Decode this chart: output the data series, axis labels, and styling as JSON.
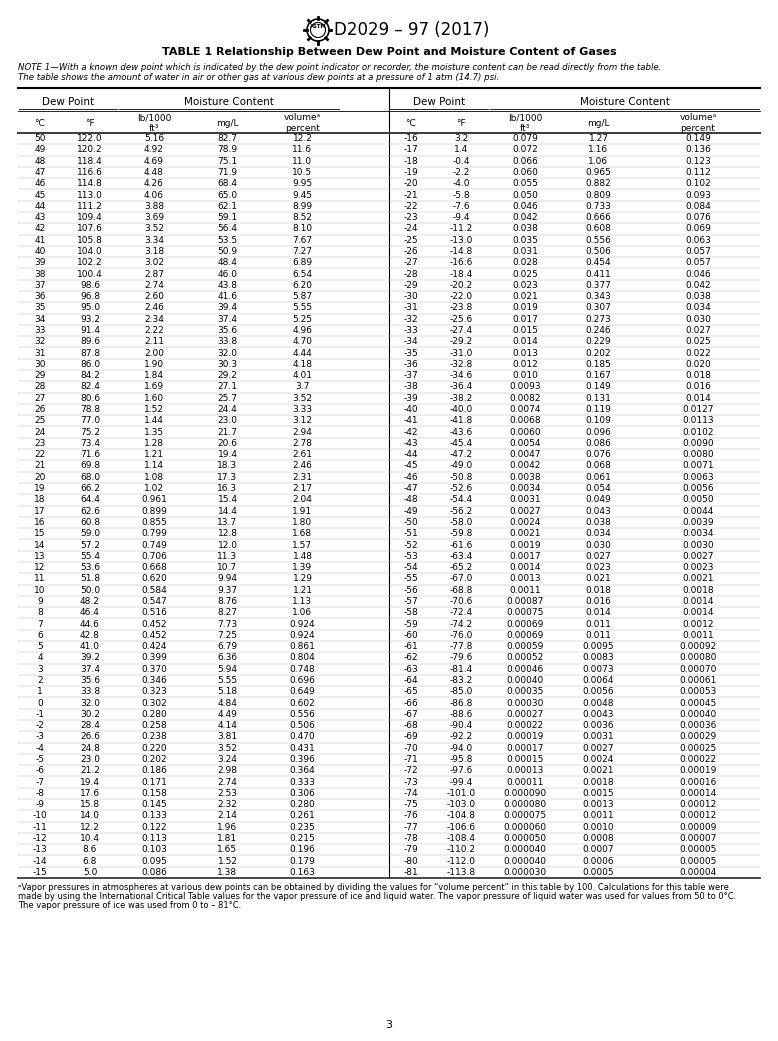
{
  "title": "D2029 – 97 (2017)",
  "table_title": "TABLE 1 Relationship Between Dew Point and Moisture Content of Gases",
  "note_line1": "NOTE 1—With a known dew point which is indicated by the dew point indicator or recorder, the moisture content can be read directly from the table.",
  "note_line2": "The table shows the amount of water in air or other gas at various dew points at a pressure of 1 atm (14.7) psi.",
  "footnote_line1": "ᵃVapor pressures in atmospheres at various dew points can be obtained by dividing the values for “volume percent” in this table by 100. Calculations for this table were",
  "footnote_line2": "made by using the International Critical Table values for the vapor pressure of ice and liquid water. The vapor pressure of liquid water was used for values from 50 to 0°C.",
  "footnote_line3": "The vapor pressure of ice was used from 0 to – 81°C.",
  "page_number": "3",
  "data_left": [
    [
      50,
      "122.0",
      "5.16",
      "82.7",
      "12.2"
    ],
    [
      49,
      "120.2",
      "4.92",
      "78.9",
      "11.6"
    ],
    [
      48,
      "118.4",
      "4.69",
      "75.1",
      "11.0"
    ],
    [
      47,
      "116.6",
      "4.48",
      "71.9",
      "10.5"
    ],
    [
      46,
      "114.8",
      "4.26",
      "68.4",
      "9.95"
    ],
    [
      45,
      "113.0",
      "4.06",
      "65.0",
      "9.45"
    ],
    [
      44,
      "111.2",
      "3.88",
      "62.1",
      "8.99"
    ],
    [
      43,
      "109.4",
      "3.69",
      "59.1",
      "8.52"
    ],
    [
      42,
      "107.6",
      "3.52",
      "56.4",
      "8.10"
    ],
    [
      41,
      "105.8",
      "3.34",
      "53.5",
      "7.67"
    ],
    [
      40,
      "104.0",
      "3.18",
      "50.9",
      "7.27"
    ],
    [
      39,
      "102.2",
      "3.02",
      "48.4",
      "6.89"
    ],
    [
      38,
      "100.4",
      "2.87",
      "46.0",
      "6.54"
    ],
    [
      37,
      "98.6",
      "2.74",
      "43.8",
      "6.20"
    ],
    [
      36,
      "96.8",
      "2.60",
      "41.6",
      "5.87"
    ],
    [
      35,
      "95.0",
      "2.46",
      "39.4",
      "5.55"
    ],
    [
      34,
      "93.2",
      "2.34",
      "37.4",
      "5.25"
    ],
    [
      33,
      "91.4",
      "2.22",
      "35.6",
      "4.96"
    ],
    [
      32,
      "89.6",
      "2.11",
      "33.8",
      "4.70"
    ],
    [
      31,
      "87.8",
      "2.00",
      "32.0",
      "4.44"
    ],
    [
      30,
      "86.0",
      "1.90",
      "30.3",
      "4.18"
    ],
    [
      29,
      "84.2",
      "1.84",
      "29.2",
      "4.01"
    ],
    [
      28,
      "82.4",
      "1.69",
      "27.1",
      "3.7"
    ],
    [
      27,
      "80.6",
      "1.60",
      "25.7",
      "3.52"
    ],
    [
      26,
      "78.8",
      "1.52",
      "24.4",
      "3.33"
    ],
    [
      25,
      "77.0",
      "1.44",
      "23.0",
      "3.12"
    ],
    [
      24,
      "75.2",
      "1.35",
      "21.7",
      "2.94"
    ],
    [
      23,
      "73.4",
      "1.28",
      "20.6",
      "2.78"
    ],
    [
      22,
      "71.6",
      "1.21",
      "19.4",
      "2.61"
    ],
    [
      21,
      "69.8",
      "1.14",
      "18.3",
      "2.46"
    ],
    [
      20,
      "68.0",
      "1.08",
      "17.3",
      "2.31"
    ],
    [
      19,
      "66.2",
      "1.02",
      "16.3",
      "2.17"
    ],
    [
      18,
      "64.4",
      "0.961",
      "15.4",
      "2.04"
    ],
    [
      17,
      "62.6",
      "0.899",
      "14.4",
      "1.91"
    ],
    [
      16,
      "60.8",
      "0.855",
      "13.7",
      "1.80"
    ],
    [
      15,
      "59.0",
      "0.799",
      "12.8",
      "1.68"
    ],
    [
      14,
      "57.2",
      "0.749",
      "12.0",
      "1.57"
    ],
    [
      13,
      "55.4",
      "0.706",
      "11.3",
      "1.48"
    ],
    [
      12,
      "53.6",
      "0.668",
      "10.7",
      "1.39"
    ],
    [
      11,
      "51.8",
      "0.620",
      "9.94",
      "1.29"
    ],
    [
      10,
      "50.0",
      "0.584",
      "9.37",
      "1.21"
    ],
    [
      9,
      "48.2",
      "0.547",
      "8.76",
      "1.13"
    ],
    [
      8,
      "46.4",
      "0.516",
      "8.27",
      "1.06"
    ],
    [
      7,
      "44.6",
      "0.452",
      "7.73",
      "0.924"
    ],
    [
      6,
      "42.8",
      "0.452",
      "7.25",
      "0.924"
    ],
    [
      5,
      "41.0",
      "0.424",
      "6.79",
      "0.861"
    ],
    [
      4,
      "39.2",
      "0.399",
      "6.36",
      "0.804"
    ],
    [
      3,
      "37.4",
      "0.370",
      "5.94",
      "0.748"
    ],
    [
      2,
      "35.6",
      "0.346",
      "5.55",
      "0.696"
    ],
    [
      1,
      "33.8",
      "0.323",
      "5.18",
      "0.649"
    ],
    [
      0,
      "32.0",
      "0.302",
      "4.84",
      "0.602"
    ],
    [
      -1,
      "30.2",
      "0.280",
      "4.49",
      "0.556"
    ],
    [
      -2,
      "28.4",
      "0.258",
      "4.14",
      "0.506"
    ],
    [
      -3,
      "26.6",
      "0.238",
      "3.81",
      "0.470"
    ],
    [
      -4,
      "24.8",
      "0.220",
      "3.52",
      "0.431"
    ],
    [
      -5,
      "23.0",
      "0.202",
      "3.24",
      "0.396"
    ],
    [
      -6,
      "21.2",
      "0.186",
      "2.98",
      "0.364"
    ],
    [
      -7,
      "19.4",
      "0.171",
      "2.74",
      "0.333"
    ],
    [
      -8,
      "17.6",
      "0.158",
      "2.53",
      "0.306"
    ],
    [
      -9,
      "15.8",
      "0.145",
      "2.32",
      "0.280"
    ],
    [
      -10,
      "14.0",
      "0.133",
      "2.14",
      "0.261"
    ],
    [
      -11,
      "12.2",
      "0.122",
      "1.96",
      "0.235"
    ],
    [
      -12,
      "10.4",
      "0.113",
      "1.81",
      "0.215"
    ],
    [
      -13,
      "8.6",
      "0.103",
      "1.65",
      "0.196"
    ],
    [
      -14,
      "6.8",
      "0.095",
      "1.52",
      "0.179"
    ],
    [
      -15,
      "5.0",
      "0.086",
      "1.38",
      "0.163"
    ]
  ],
  "data_right": [
    [
      -16,
      "3.2",
      "0.079",
      "1.27",
      "0.149"
    ],
    [
      -17,
      "1.4",
      "0.072",
      "1.16",
      "0.136"
    ],
    [
      -18,
      "-0.4",
      "0.066",
      "1.06",
      "0.123"
    ],
    [
      -19,
      "-2.2",
      "0.060",
      "0.965",
      "0.112"
    ],
    [
      -20,
      "-4.0",
      "0.055",
      "0.882",
      "0.102"
    ],
    [
      -21,
      "-5.8",
      "0.050",
      "0.809",
      "0.093"
    ],
    [
      -22,
      "-7.6",
      "0.046",
      "0.733",
      "0.084"
    ],
    [
      -23,
      "-9.4",
      "0.042",
      "0.666",
      "0.076"
    ],
    [
      -24,
      "-11.2",
      "0.038",
      "0.608",
      "0.069"
    ],
    [
      -25,
      "-13.0",
      "0.035",
      "0.556",
      "0.063"
    ],
    [
      -26,
      "-14.8",
      "0.031",
      "0.506",
      "0.057"
    ],
    [
      -27,
      "-16.6",
      "0.028",
      "0.454",
      "0.057"
    ],
    [
      -28,
      "-18.4",
      "0.025",
      "0.411",
      "0.046"
    ],
    [
      -29,
      "-20.2",
      "0.023",
      "0.377",
      "0.042"
    ],
    [
      -30,
      "-22.0",
      "0.021",
      "0.343",
      "0.038"
    ],
    [
      -31,
      "-23.8",
      "0.019",
      "0.307",
      "0.034"
    ],
    [
      -32,
      "-25.6",
      "0.017",
      "0.273",
      "0.030"
    ],
    [
      -33,
      "-27.4",
      "0.015",
      "0.246",
      "0.027"
    ],
    [
      -34,
      "-29.2",
      "0.014",
      "0.229",
      "0.025"
    ],
    [
      -35,
      "-31.0",
      "0.013",
      "0.202",
      "0.022"
    ],
    [
      -36,
      "-32.8",
      "0.012",
      "0.185",
      "0.020"
    ],
    [
      -37,
      "-34.6",
      "0.010",
      "0.167",
      "0.018"
    ],
    [
      -38,
      "-36.4",
      "0.0093",
      "0.149",
      "0.016"
    ],
    [
      -39,
      "-38.2",
      "0.0082",
      "0.131",
      "0.014"
    ],
    [
      -40,
      "-40.0",
      "0.0074",
      "0.119",
      "0.0127"
    ],
    [
      -41,
      "-41.8",
      "0.0068",
      "0.109",
      "0.0113"
    ],
    [
      -42,
      "-43.6",
      "0.0060",
      "0.096",
      "0.0102"
    ],
    [
      -43,
      "-45.4",
      "0.0054",
      "0.086",
      "0.0090"
    ],
    [
      -44,
      "-47.2",
      "0.0047",
      "0.076",
      "0.0080"
    ],
    [
      -45,
      "-49.0",
      "0.0042",
      "0.068",
      "0.0071"
    ],
    [
      -46,
      "-50.8",
      "0.0038",
      "0.061",
      "0.0063"
    ],
    [
      -47,
      "-52.6",
      "0.0034",
      "0.054",
      "0.0056"
    ],
    [
      -48,
      "-54.4",
      "0.0031",
      "0.049",
      "0.0050"
    ],
    [
      -49,
      "-56.2",
      "0.0027",
      "0.043",
      "0.0044"
    ],
    [
      -50,
      "-58.0",
      "0.0024",
      "0.038",
      "0.0039"
    ],
    [
      -51,
      "-59.8",
      "0.0021",
      "0.034",
      "0.0034"
    ],
    [
      -52,
      "-61.6",
      "0.0019",
      "0.030",
      "0.0030"
    ],
    [
      -53,
      "-63.4",
      "0.0017",
      "0.027",
      "0.0027"
    ],
    [
      -54,
      "-65.2",
      "0.0014",
      "0.023",
      "0.0023"
    ],
    [
      -55,
      "-67.0",
      "0.0013",
      "0.021",
      "0.0021"
    ],
    [
      -56,
      "-68.8",
      "0.0011",
      "0.018",
      "0.0018"
    ],
    [
      -57,
      "-70.6",
      "0.00087",
      "0.016",
      "0.0014"
    ],
    [
      -58,
      "-72.4",
      "0.00075",
      "0.014",
      "0.0014"
    ],
    [
      -59,
      "-74.2",
      "0.00069",
      "0.011",
      "0.0012"
    ],
    [
      -60,
      "-76.0",
      "0.00069",
      "0.011",
      "0.0011"
    ],
    [
      -61,
      "-77.8",
      "0.00059",
      "0.0095",
      "0.00092"
    ],
    [
      -62,
      "-79.6",
      "0.00052",
      "0.0083",
      "0.00080"
    ],
    [
      -63,
      "-81.4",
      "0.00046",
      "0.0073",
      "0.00070"
    ],
    [
      -64,
      "-83.2",
      "0.00040",
      "0.0064",
      "0.00061"
    ],
    [
      -65,
      "-85.0",
      "0.00035",
      "0.0056",
      "0.00053"
    ],
    [
      -66,
      "-86.8",
      "0.00030",
      "0.0048",
      "0.00045"
    ],
    [
      -67,
      "-88.6",
      "0.00027",
      "0.0043",
      "0.00040"
    ],
    [
      -68,
      "-90.4",
      "0.00022",
      "0.0036",
      "0.00036"
    ],
    [
      -69,
      "-92.2",
      "0.00019",
      "0.0031",
      "0.00029"
    ],
    [
      -70,
      "-94.0",
      "0.00017",
      "0.0027",
      "0.00025"
    ],
    [
      -71,
      "-95.8",
      "0.00015",
      "0.0024",
      "0.00022"
    ],
    [
      -72,
      "-97.6",
      "0.00013",
      "0.0021",
      "0.00019"
    ],
    [
      -73,
      "-99.4",
      "0.00011",
      "0.0018",
      "0.00016"
    ],
    [
      -74,
      "-101.0",
      "0.000090",
      "0.0015",
      "0.00014"
    ],
    [
      -75,
      "-103.0",
      "0.000080",
      "0.0013",
      "0.00012"
    ],
    [
      -76,
      "-104.8",
      "0.000075",
      "0.0011",
      "0.00012"
    ],
    [
      -77,
      "-106.6",
      "0.000060",
      "0.0010",
      "0.00009"
    ],
    [
      -78,
      "-108.4",
      "0.000050",
      "0.0008",
      "0.00007"
    ],
    [
      -79,
      "-110.2",
      "0.000040",
      "0.0007",
      "0.00005"
    ],
    [
      -80,
      "-112.0",
      "0.000040",
      "0.0006",
      "0.00005"
    ],
    [
      -81,
      "-113.8",
      "0.000030",
      "0.0005",
      "0.00004"
    ]
  ]
}
